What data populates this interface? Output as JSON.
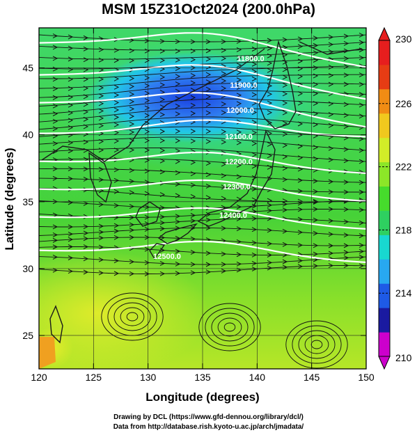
{
  "title": "MSM 15Z31Oct2024 (200.0hPa)",
  "axes": {
    "xlabel": "Longitude (degrees)",
    "ylabel": "Latitude  (degrees)",
    "xlim": [
      120,
      150
    ],
    "ylim": [
      22.5,
      48
    ],
    "xticks": [
      "120",
      "125",
      "130",
      "135",
      "140",
      "145",
      "150"
    ],
    "yticks": [
      "25",
      "30",
      "35",
      "40",
      "45"
    ],
    "grid": true
  },
  "colorbar": {
    "ticks": [
      "230",
      "226",
      "222",
      "218",
      "214",
      "210"
    ],
    "range": [
      210,
      230
    ],
    "colors": [
      "#cc00cc",
      "#1a1aa0",
      "#1e5ae6",
      "#28a8f0",
      "#18d8d0",
      "#2ed060",
      "#46dc2c",
      "#8ce628",
      "#d2ec28",
      "#f0c81e",
      "#f08c14",
      "#e63c14",
      "#e61e1e"
    ]
  },
  "contours": {
    "labels": [
      "11800.0",
      "11900.0",
      "12000.0",
      "12100.0",
      "12200.0",
      "12300.0",
      "12400.0",
      "12500.0"
    ]
  },
  "credits": {
    "line1": "Drawing by DCL (https://www.gfd-dennou.org/library/dcl/)",
    "line2": "Data from http://database.rish.kyoto-u.ac.jp/arch/jmadata/"
  },
  "colors": {
    "coast": "#1a1a1a",
    "contour": "#ffffff",
    "streamline": "#111111"
  }
}
